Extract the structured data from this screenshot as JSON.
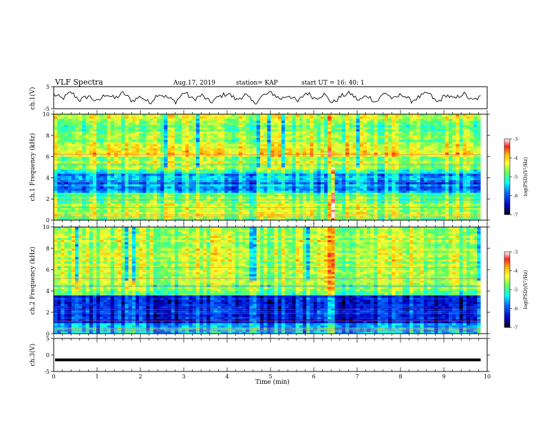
{
  "header": {
    "title": "VLF Spectra",
    "date": "Aug.17, 2019",
    "station": "station= KAP",
    "start_ut": "start  UT  =   16: 40: 1"
  },
  "colorbar": {
    "label": "log(PSD)(V²/Hz)",
    "ticks": [
      -3,
      -4,
      -5,
      -6,
      -7
    ],
    "colors": [
      "#ffffff",
      "#ff2020",
      "#ffb000",
      "#ffff30",
      "#60ff60",
      "#00ffff",
      "#0060ff",
      "#0000c0",
      "#000000"
    ]
  },
  "chart_data": [
    {
      "type": "line",
      "panel": "ch1-waveform",
      "ylabel": "ch.1(V)",
      "ylim": [
        -5,
        5
      ],
      "yticks": [
        5,
        -5
      ],
      "x_range_min": [
        0,
        9.85
      ],
      "description_of_trace": "noisy waveform between about -3 and 3 V",
      "approx_values": [
        1.5,
        -0.5,
        2.5,
        -1.2,
        0.8,
        -2.0,
        1.8,
        -0.4,
        2.2,
        -1.5,
        0.6,
        -2.5,
        1.9,
        0.2,
        -1.8,
        2.6,
        -0.9,
        1.1,
        -2.2,
        0.5,
        2.0,
        -1.0,
        1.4,
        -2.7,
        0.9,
        2.3,
        -0.6,
        1.2,
        -1.9,
        2.4,
        -0.3,
        1.6,
        -2.4,
        0.7,
        2.1,
        -1.3,
        1.0,
        -2.1,
        2.5,
        -0.8,
        1.7,
        -1.6,
        0.4,
        2.2,
        -2.3,
        1.3,
        -0.7,
        2.0,
        -1.4,
        0.3
      ]
    },
    {
      "type": "heatmap",
      "panel": "ch1-spectrogram",
      "ylabel": "ch.1 Frequency (kHz)",
      "ylim": [
        0,
        10
      ],
      "yticks": [
        0,
        2,
        4,
        6,
        8,
        10
      ],
      "xlim": [
        0,
        10
      ],
      "data_end_min": 9.85,
      "zlabel": "log(PSD)(V²/Hz)",
      "zlim": [
        -7,
        -3
      ]
    },
    {
      "type": "heatmap",
      "panel": "ch2-spectrogram",
      "ylabel": "ch.2 Frequency (kHz)",
      "ylim": [
        0,
        10
      ],
      "yticks": [
        0,
        2,
        4,
        6,
        8,
        10
      ],
      "xlim": [
        0,
        10
      ],
      "data_end_min": 9.85,
      "zlabel": "log(PSD)(V²/Hz)",
      "zlim": [
        -7,
        -3
      ]
    },
    {
      "type": "line",
      "panel": "ch3-waveform",
      "ylabel": "ch.3(V)",
      "ylim": [
        -5,
        5
      ],
      "yticks": [
        5,
        0,
        -5
      ],
      "constant_value": -1.5,
      "xlabel": "Time (min)",
      "xlim": [
        0,
        10
      ],
      "xticks": [
        0,
        1,
        2,
        3,
        4,
        5,
        6,
        7,
        8,
        9,
        10
      ]
    }
  ]
}
